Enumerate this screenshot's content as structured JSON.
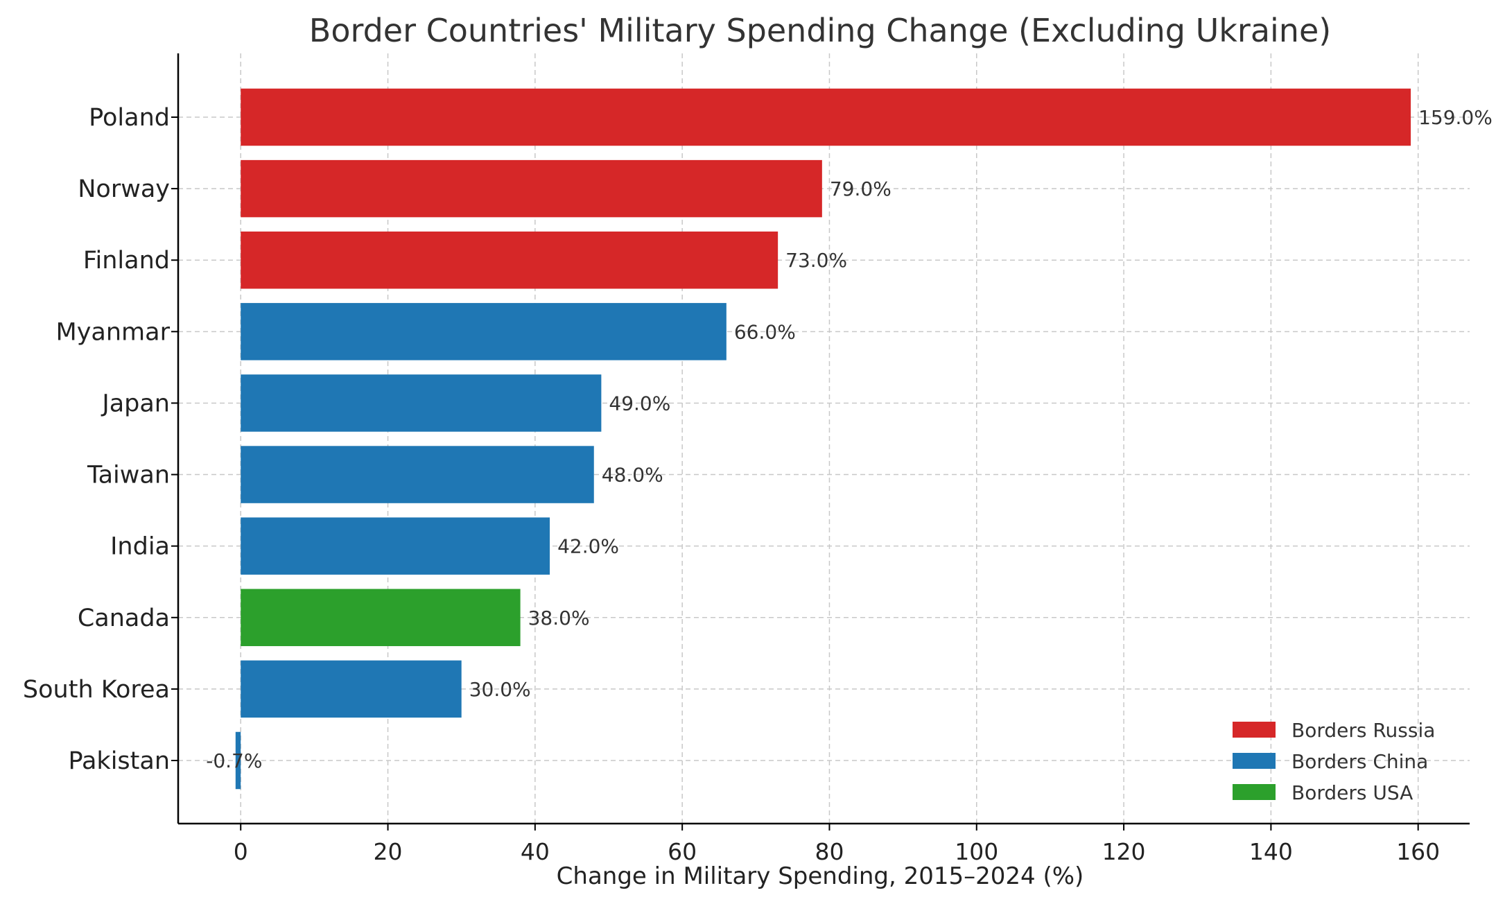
{
  "chart_data": {
    "type": "bar",
    "orientation": "horizontal",
    "title": "Border Countries' Military Spending Change (Excluding Ukraine)",
    "xlabel": "Change in Military Spending, 2015–2024 (%)",
    "ylabel": "",
    "xlim": [
      -8.5,
      167
    ],
    "xticks": [
      0,
      20,
      40,
      60,
      80,
      100,
      120,
      140,
      160
    ],
    "grid": true,
    "categories": [
      "Poland",
      "Norway",
      "Finland",
      "Myanmar",
      "Japan",
      "Taiwan",
      "India",
      "Canada",
      "South Korea",
      "Pakistan"
    ],
    "values": [
      159.0,
      79.0,
      73.0,
      66.0,
      49.0,
      48.0,
      42.0,
      38.0,
      30.0,
      -0.7
    ],
    "data_labels": [
      "159.0%",
      "79.0%",
      "73.0%",
      "66.0%",
      "49.0%",
      "48.0%",
      "42.0%",
      "38.0%",
      "30.0%",
      "-0.7%"
    ],
    "groups": [
      "Borders Russia",
      "Borders Russia",
      "Borders Russia",
      "Borders China",
      "Borders China",
      "Borders China",
      "Borders China",
      "Borders USA",
      "Borders China",
      "Borders China"
    ],
    "legend": {
      "placement": "bottom-right",
      "entries": [
        {
          "label": "Borders Russia",
          "color": "#d62728"
        },
        {
          "label": "Borders China",
          "color": "#1f77b4"
        },
        {
          "label": "Borders USA",
          "color": "#2ca02c"
        }
      ]
    }
  }
}
